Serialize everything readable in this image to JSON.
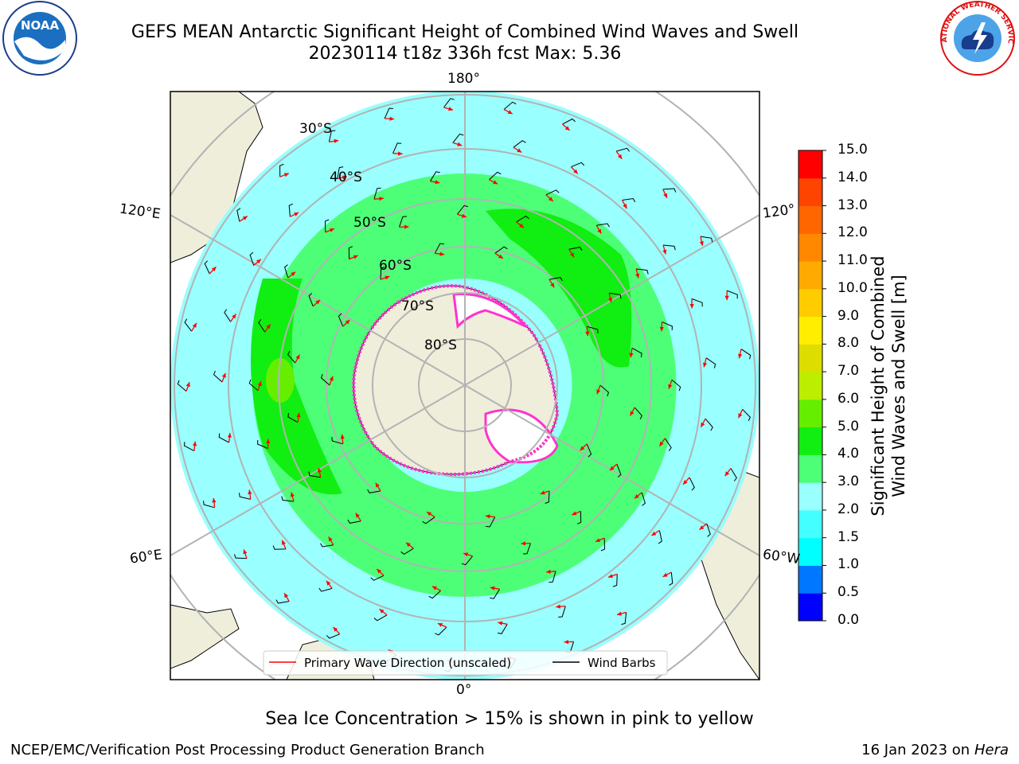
{
  "title": {
    "line1": "GEFS MEAN Antarctic Significant Height of Combined Wind Waves and Swell",
    "line2": "20230114 t18z 336h fcst   Max: 5.36"
  },
  "map": {
    "projection": "south-polar-stereographic",
    "lon_labels": [
      "180°",
      "120°E",
      "120°",
      "60°E",
      "60°W",
      "0°"
    ],
    "lat_labels": [
      "30°S",
      "40°S",
      "50°S",
      "60°S",
      "70°S",
      "80°S"
    ]
  },
  "legend": {
    "primary_wave": "Primary Wave Direction (unscaled)",
    "wind_barbs": "Wind Barbs",
    "primary_wave_color": "#ff0000",
    "wind_barbs_color": "#000000"
  },
  "colorbar": {
    "title_line1": "Significant Height of Combined",
    "title_line2": "Wind Waves and Swell [m]",
    "ticks": [
      "15.0",
      "14.0",
      "13.0",
      "12.0",
      "11.0",
      "10.0",
      "9.0",
      "8.0",
      "7.0",
      "6.0",
      "5.0",
      "4.0",
      "3.0",
      "2.0",
      "1.5",
      "1.0",
      "0.5",
      "0.0"
    ],
    "colors": [
      "#0000ff",
      "#0077ff",
      "#00ffff",
      "#44ffff",
      "#99ffff",
      "#4dff77",
      "#11ee11",
      "#66ee00",
      "#bbee00",
      "#dddd00",
      "#ffee00",
      "#ffcc00",
      "#ffaa00",
      "#ff8800",
      "#ff6600",
      "#ff4400",
      "#ff0000"
    ]
  },
  "subtitle": "Sea Ice Concentration > 15% is shown in pink to yellow",
  "footer": {
    "left": "NCEP/EMC/Verification Post Processing Product Generation Branch",
    "right_date": "16 Jan 2023 on ",
    "right_machine": "Hera"
  },
  "logos": {
    "noaa_text": "NOAA",
    "nws_text": "NATIONAL WEATHER SERVICE"
  }
}
